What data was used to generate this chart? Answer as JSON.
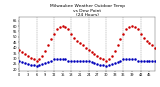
{
  "title": "Milwaukee Weather Outdoor Temp\nvs Dew Point\n(24 Hours)",
  "title_fontsize": 3.2,
  "background_color": "#ffffff",
  "grid_color": "#888888",
  "temp_color": "#cc0000",
  "dew_color": "#0000bb",
  "outdoor_color": "#000000",
  "temp_values": [
    38,
    36,
    34,
    32,
    30,
    29,
    28,
    29,
    32,
    37,
    42,
    48,
    53,
    57,
    59,
    60,
    59,
    57,
    53,
    49,
    46,
    44,
    42,
    40,
    38,
    36,
    34,
    32,
    30,
    29,
    28,
    29,
    32,
    37,
    42,
    48,
    53,
    57,
    59,
    60,
    59,
    57,
    53,
    49,
    46,
    44,
    42,
    40
  ],
  "dew_values": [
    28,
    27,
    26,
    25,
    24,
    24,
    23,
    24,
    25,
    26,
    27,
    28,
    29,
    29,
    29,
    29,
    29,
    28,
    28,
    28,
    28,
    28,
    28,
    28,
    28,
    27,
    26,
    25,
    24,
    24,
    23,
    24,
    25,
    26,
    27,
    28,
    29,
    29,
    29,
    29,
    29,
    28,
    28,
    28,
    28,
    28,
    28,
    28
  ],
  "hours": [
    0,
    1,
    2,
    3,
    4,
    5,
    6,
    7,
    8,
    9,
    10,
    11,
    12,
    13,
    14,
    15,
    16,
    17,
    18,
    19,
    20,
    21,
    22,
    23,
    24,
    25,
    26,
    27,
    28,
    29,
    30,
    31,
    32,
    33,
    34,
    35,
    36,
    37,
    38,
    39,
    40,
    41,
    42,
    43,
    44,
    45,
    46,
    47
  ],
  "xlim": [
    0,
    47
  ],
  "ylim": [
    18,
    68
  ],
  "ytick_values": [
    20,
    25,
    30,
    35,
    40,
    45,
    50,
    55,
    60,
    65
  ],
  "xtick_step": 3,
  "grid_x_positions": [
    0,
    6,
    12,
    18,
    24,
    30,
    36,
    42,
    48
  ],
  "marker_size": 0.8,
  "tick_fontsize": 2.5,
  "linewidth": 0.3
}
